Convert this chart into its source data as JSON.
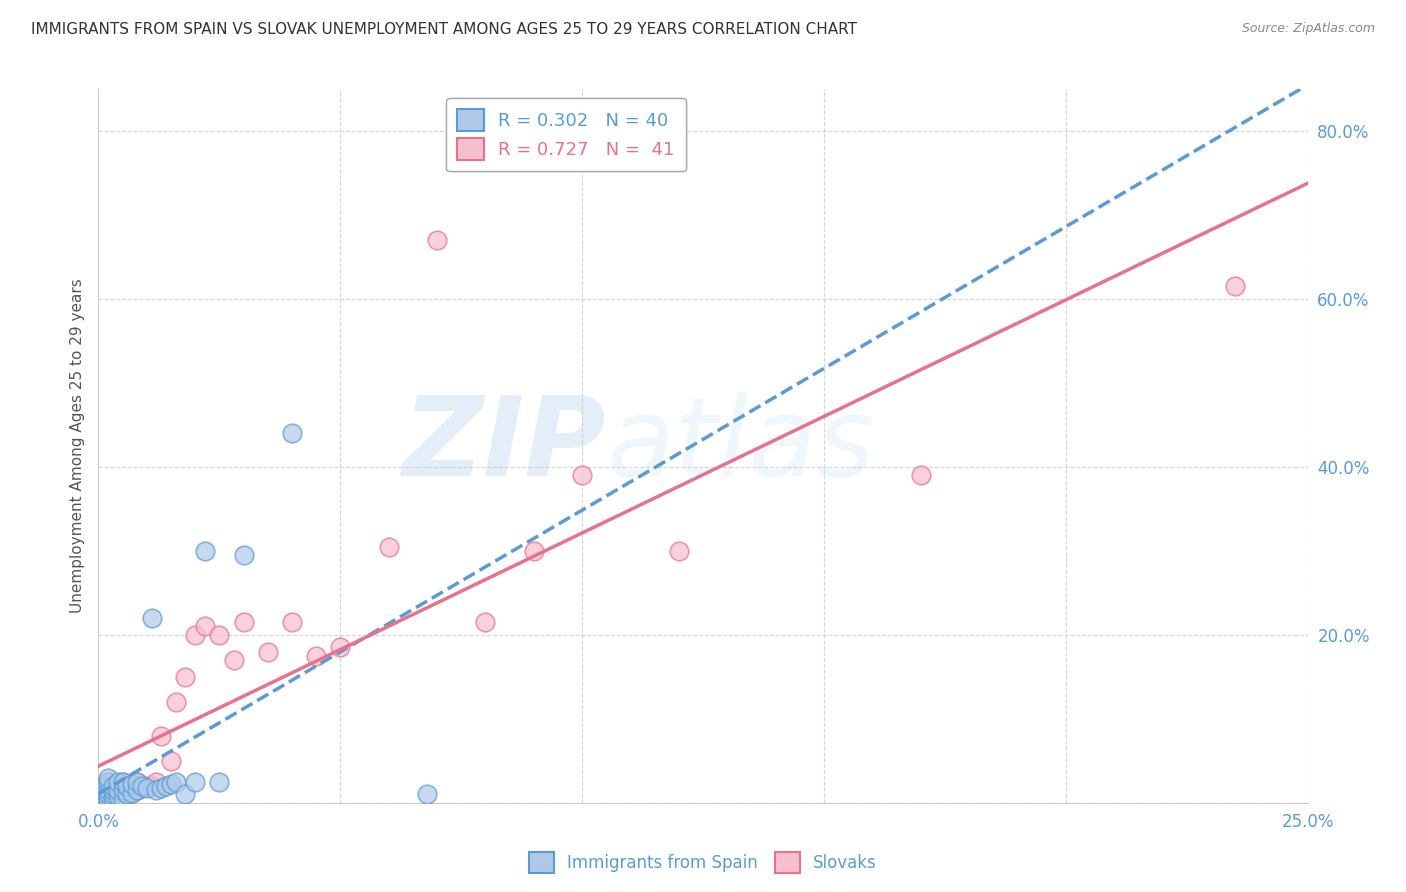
{
  "title": "IMMIGRANTS FROM SPAIN VS SLOVAK UNEMPLOYMENT AMONG AGES 25 TO 29 YEARS CORRELATION CHART",
  "source": "Source: ZipAtlas.com",
  "ylabel": "Unemployment Among Ages 25 to 29 years",
  "xlim": [
    0.0,
    0.25
  ],
  "ylim": [
    0.0,
    0.85
  ],
  "xticks": [
    0.0,
    0.05,
    0.1,
    0.15,
    0.2,
    0.25
  ],
  "yticks": [
    0.0,
    0.2,
    0.4,
    0.6,
    0.8
  ],
  "xtick_labels": [
    "0.0%",
    "",
    "",
    "",
    "",
    "25.0%"
  ],
  "ytick_labels": [
    "",
    "20.0%",
    "40.0%",
    "60.0%",
    "80.0%"
  ],
  "background_color": "#ffffff",
  "watermark_zip": "ZIP",
  "watermark_atlas": "atlas",
  "legend_r1": "R = 0.302",
  "legend_n1": "N = 40",
  "legend_r2": "R = 0.727",
  "legend_n2": "N =  41",
  "scatter_spain_x": [
    0.001,
    0.001,
    0.001,
    0.001,
    0.002,
    0.002,
    0.002,
    0.002,
    0.002,
    0.003,
    0.003,
    0.003,
    0.003,
    0.004,
    0.004,
    0.004,
    0.005,
    0.005,
    0.005,
    0.006,
    0.006,
    0.007,
    0.007,
    0.008,
    0.008,
    0.009,
    0.01,
    0.011,
    0.012,
    0.013,
    0.014,
    0.015,
    0.016,
    0.018,
    0.02,
    0.022,
    0.025,
    0.03,
    0.04,
    0.068
  ],
  "scatter_spain_y": [
    0.005,
    0.01,
    0.015,
    0.02,
    0.005,
    0.01,
    0.015,
    0.025,
    0.03,
    0.005,
    0.01,
    0.015,
    0.02,
    0.008,
    0.015,
    0.025,
    0.005,
    0.015,
    0.025,
    0.01,
    0.02,
    0.012,
    0.022,
    0.015,
    0.025,
    0.02,
    0.018,
    0.22,
    0.015,
    0.018,
    0.02,
    0.022,
    0.025,
    0.01,
    0.025,
    0.3,
    0.025,
    0.295,
    0.44,
    0.01
  ],
  "scatter_slovak_x": [
    0.001,
    0.001,
    0.002,
    0.002,
    0.003,
    0.003,
    0.004,
    0.004,
    0.005,
    0.005,
    0.006,
    0.006,
    0.007,
    0.007,
    0.008,
    0.008,
    0.009,
    0.01,
    0.011,
    0.012,
    0.013,
    0.015,
    0.016,
    0.018,
    0.02,
    0.022,
    0.025,
    0.028,
    0.03,
    0.035,
    0.04,
    0.045,
    0.05,
    0.06,
    0.07,
    0.08,
    0.09,
    0.1,
    0.12,
    0.17,
    0.235
  ],
  "scatter_slovak_y": [
    0.005,
    0.02,
    0.01,
    0.025,
    0.008,
    0.015,
    0.01,
    0.02,
    0.01,
    0.025,
    0.01,
    0.02,
    0.012,
    0.02,
    0.015,
    0.025,
    0.018,
    0.02,
    0.02,
    0.025,
    0.08,
    0.05,
    0.12,
    0.15,
    0.2,
    0.21,
    0.2,
    0.17,
    0.215,
    0.18,
    0.215,
    0.175,
    0.185,
    0.305,
    0.67,
    0.215,
    0.3,
    0.39,
    0.3,
    0.39,
    0.615
  ],
  "spain_fill_color": "#aec9e8",
  "spain_edge_color": "#5b9bd5",
  "slovak_fill_color": "#f7bece",
  "slovak_edge_color": "#e8728e",
  "trend_spain_color": "#5b9bd5",
  "trend_slovak_color": "#e8728e",
  "grid_color": "#cccccc",
  "tick_color": "#5b9bd5",
  "title_fontsize": 11,
  "label_fontsize": 11,
  "tick_fontsize": 12
}
